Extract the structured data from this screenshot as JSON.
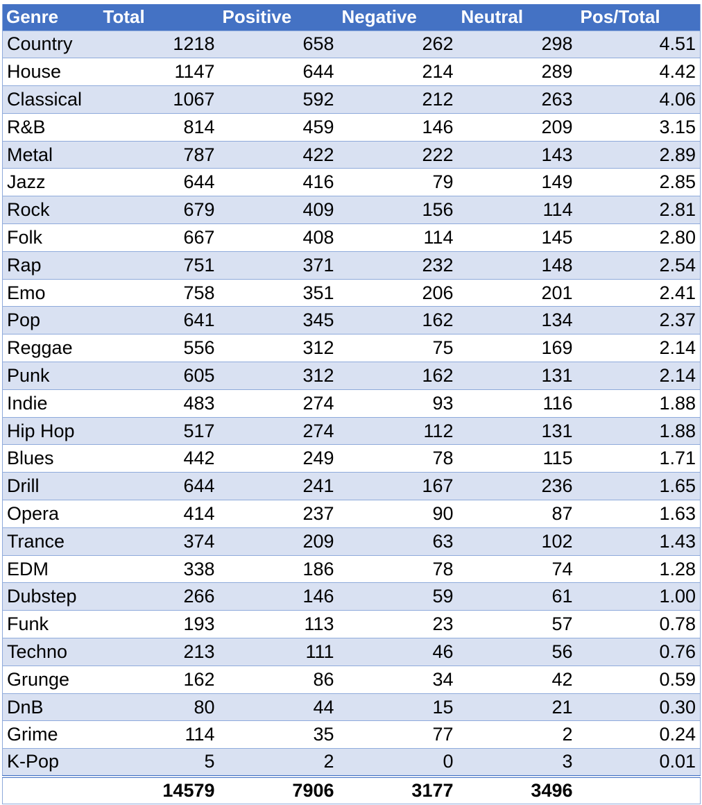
{
  "table": {
    "headers": [
      "Genre",
      "Total",
      "Positive",
      "Negative",
      "Neutral",
      "Pos/Total"
    ],
    "rows": [
      [
        "Country",
        "1218",
        "658",
        "262",
        "298",
        "4.51"
      ],
      [
        "House",
        "1147",
        "644",
        "214",
        "289",
        "4.42"
      ],
      [
        "Classical",
        "1067",
        "592",
        "212",
        "263",
        "4.06"
      ],
      [
        "R&B",
        "814",
        "459",
        "146",
        "209",
        "3.15"
      ],
      [
        "Metal",
        "787",
        "422",
        "222",
        "143",
        "2.89"
      ],
      [
        "Jazz",
        "644",
        "416",
        "79",
        "149",
        "2.85"
      ],
      [
        "Rock",
        "679",
        "409",
        "156",
        "114",
        "2.81"
      ],
      [
        "Folk",
        "667",
        "408",
        "114",
        "145",
        "2.80"
      ],
      [
        "Rap",
        "751",
        "371",
        "232",
        "148",
        "2.54"
      ],
      [
        "Emo",
        "758",
        "351",
        "206",
        "201",
        "2.41"
      ],
      [
        "Pop",
        "641",
        "345",
        "162",
        "134",
        "2.37"
      ],
      [
        "Reggae",
        "556",
        "312",
        "75",
        "169",
        "2.14"
      ],
      [
        "Punk",
        "605",
        "312",
        "162",
        "131",
        "2.14"
      ],
      [
        "Indie",
        "483",
        "274",
        "93",
        "116",
        "1.88"
      ],
      [
        "Hip Hop",
        "517",
        "274",
        "112",
        "131",
        "1.88"
      ],
      [
        "Blues",
        "442",
        "249",
        "78",
        "115",
        "1.71"
      ],
      [
        "Drill",
        "644",
        "241",
        "167",
        "236",
        "1.65"
      ],
      [
        "Opera",
        "414",
        "237",
        "90",
        "87",
        "1.63"
      ],
      [
        "Trance",
        "374",
        "209",
        "63",
        "102",
        "1.43"
      ],
      [
        "EDM",
        "338",
        "186",
        "78",
        "74",
        "1.28"
      ],
      [
        "Dubstep",
        "266",
        "146",
        "59",
        "61",
        "1.00"
      ],
      [
        "Funk",
        "193",
        "113",
        "23",
        "57",
        "0.78"
      ],
      [
        "Techno",
        "213",
        "111",
        "46",
        "56",
        "0.76"
      ],
      [
        "Grunge",
        "162",
        "86",
        "34",
        "42",
        "0.59"
      ],
      [
        "DnB",
        "80",
        "44",
        "15",
        "21",
        "0.30"
      ],
      [
        "Grime",
        "114",
        "35",
        "77",
        "2",
        "0.24"
      ],
      [
        "K-Pop",
        "5",
        "2",
        "0",
        "3",
        "0.01"
      ]
    ],
    "totals": [
      "",
      "14579",
      "7906",
      "3177",
      "3496",
      ""
    ]
  },
  "colors": {
    "header_bg": "#4472c4",
    "header_text": "#ffffff",
    "band_row": "#d9e1f2",
    "plain_row": "#ffffff",
    "grid_line": "#8eaadb"
  }
}
